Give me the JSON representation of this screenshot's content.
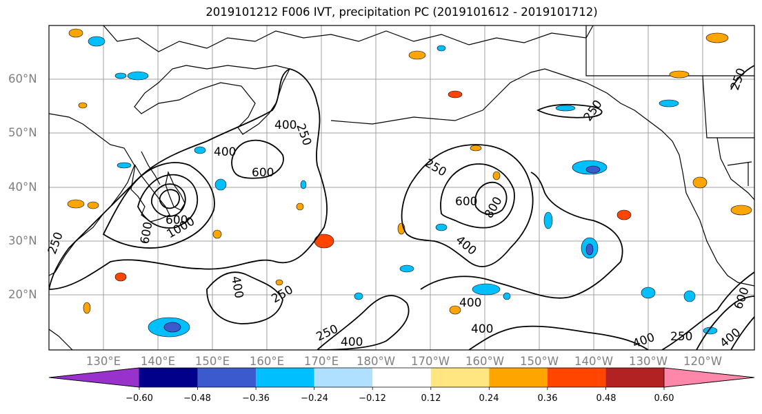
{
  "title": "2019101212 F006 IVT, precipitation PC (2019101612 - 2019101712)",
  "lat_labels": [
    "60°N",
    "50°N",
    "40°N",
    "30°N",
    "20°N"
  ],
  "lon_labels": [
    "130°E",
    "140°E",
    "150°E",
    "160°E",
    "170°E",
    "180°W",
    "170°W",
    "160°W",
    "150°W",
    "140°W",
    "130°W",
    "120°W"
  ],
  "colorbar": {
    "ticks": [
      "−0.60",
      "−0.48",
      "−0.36",
      "−0.24",
      "−0.12",
      "0.12",
      "0.24",
      "0.36",
      "0.48",
      "0.60"
    ],
    "colors": [
      "#9932CC",
      "#00008B",
      "#3A5ACD",
      "#00BFFF",
      "#B0E0FF",
      "#FFFFFF",
      "#FFE680",
      "#FFA500",
      "#FF4500",
      "#B22222",
      "#FF88AA"
    ]
  },
  "contour_labels": [
    {
      "text": "400"
    },
    {
      "text": "250"
    },
    {
      "text": "400"
    },
    {
      "text": "600"
    },
    {
      "text": "600"
    },
    {
      "text": "1000"
    },
    {
      "text": "600"
    },
    {
      "text": "400"
    },
    {
      "text": "250"
    },
    {
      "text": "250"
    },
    {
      "text": "600"
    },
    {
      "text": "800"
    },
    {
      "text": "400"
    },
    {
      "text": "250"
    },
    {
      "text": "400"
    },
    {
      "text": "400"
    },
    {
      "text": "250"
    },
    {
      "text": "400"
    },
    {
      "text": "400"
    },
    {
      "text": "250"
    },
    {
      "text": "400"
    },
    {
      "text": "250"
    },
    {
      "text": "600"
    },
    {
      "text": "250"
    }
  ],
  "colors": {
    "grid": "#a0a0a0",
    "coast": "#000000",
    "contour": "#000000",
    "axis_label": "#808080"
  }
}
